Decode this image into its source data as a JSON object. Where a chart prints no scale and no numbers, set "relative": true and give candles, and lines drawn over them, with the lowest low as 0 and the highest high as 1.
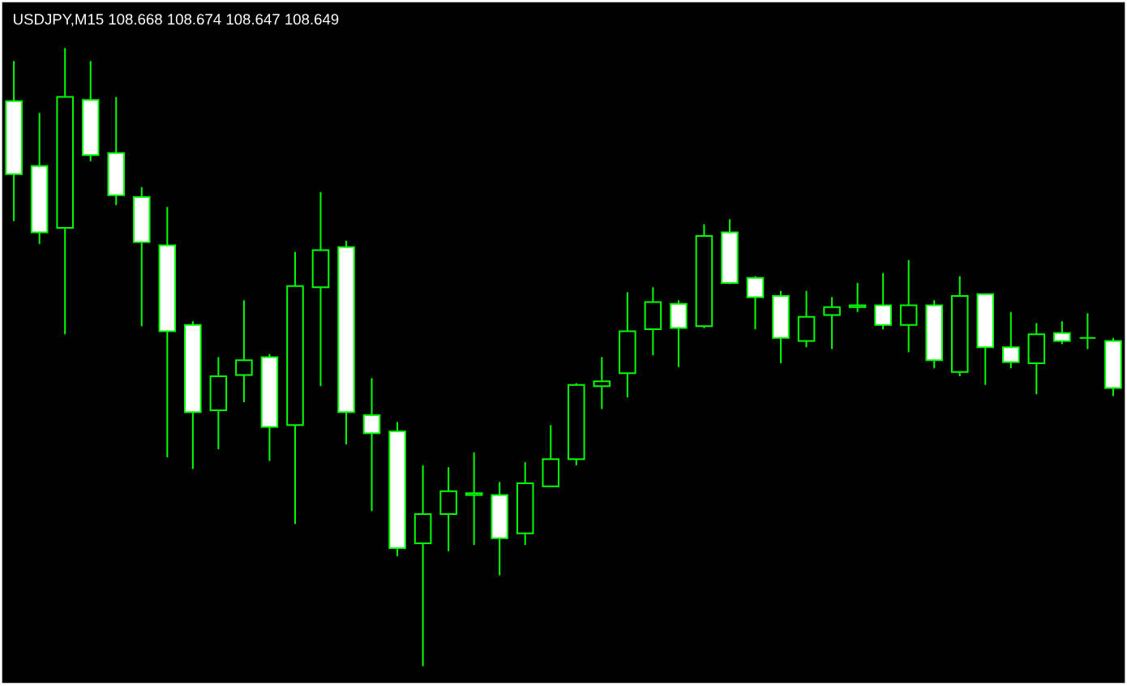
{
  "chart_data": {
    "type": "candlestick",
    "title": "USDJPY,M15  108.668 108.674 108.647 108.649",
    "relative": true,
    "color": "#00ff00",
    "categories": [
      null,
      null,
      null,
      null,
      null,
      null,
      null,
      null,
      null,
      null,
      null,
      null,
      null,
      null,
      null,
      null,
      null,
      null,
      null,
      null,
      null,
      null,
      null,
      null,
      null,
      null,
      null,
      null,
      null,
      null,
      null,
      null,
      null,
      null,
      null,
      null,
      null,
      null,
      null,
      null,
      null,
      null,
      null,
      null
    ],
    "ohlc": [
      [
        0.914,
        0.979,
        0.72,
        0.796
      ],
      [
        0.809,
        0.895,
        0.683,
        0.702
      ],
      [
        0.709,
        1.0,
        0.537,
        0.921
      ],
      [
        0.916,
        0.979,
        0.817,
        0.827
      ],
      [
        0.83,
        0.921,
        0.746,
        0.762
      ],
      [
        0.759,
        0.775,
        0.55,
        0.686
      ],
      [
        0.681,
        0.743,
        0.338,
        0.542
      ],
      [
        0.552,
        0.558,
        0.319,
        0.411
      ],
      [
        0.414,
        0.5,
        0.351,
        0.469
      ],
      [
        0.471,
        0.592,
        0.427,
        0.495
      ],
      [
        0.5,
        0.505,
        0.332,
        0.387
      ],
      [
        0.39,
        0.67,
        0.23,
        0.615
      ],
      [
        0.613,
        0.767,
        0.453,
        0.673
      ],
      [
        0.678,
        0.688,
        0.359,
        0.411
      ],
      [
        0.406,
        0.466,
        0.251,
        0.377
      ],
      [
        0.38,
        0.395,
        0.178,
        0.191
      ],
      [
        0.199,
        0.325,
        0.0,
        0.246
      ],
      [
        0.246,
        0.322,
        0.186,
        0.283
      ],
      [
        0.277,
        0.346,
        0.196,
        0.28
      ],
      [
        0.277,
        0.298,
        0.147,
        0.207
      ],
      [
        0.215,
        0.33,
        0.196,
        0.296
      ],
      [
        0.291,
        0.39,
        0.291,
        0.335
      ],
      [
        0.335,
        0.458,
        0.325,
        0.455
      ],
      [
        0.453,
        0.5,
        0.416,
        0.461
      ],
      [
        0.474,
        0.605,
        0.435,
        0.542
      ],
      [
        0.545,
        0.613,
        0.503,
        0.589
      ],
      [
        0.586,
        0.592,
        0.484,
        0.547
      ],
      [
        0.55,
        0.715,
        0.547,
        0.696
      ],
      [
        0.702,
        0.723,
        0.618,
        0.62
      ],
      [
        0.628,
        0.631,
        0.545,
        0.597
      ],
      [
        0.599,
        0.607,
        0.49,
        0.531
      ],
      [
        0.526,
        0.607,
        0.516,
        0.565
      ],
      [
        0.568,
        0.597,
        0.513,
        0.581
      ],
      [
        0.581,
        0.62,
        0.573,
        0.584
      ],
      [
        0.584,
        0.636,
        0.545,
        0.552
      ],
      [
        0.552,
        0.657,
        0.508,
        0.584
      ],
      [
        0.584,
        0.592,
        0.482,
        0.495
      ],
      [
        0.476,
        0.631,
        0.469,
        0.599
      ],
      [
        0.602,
        0.602,
        0.455,
        0.516
      ],
      [
        0.516,
        0.573,
        0.482,
        0.492
      ],
      [
        0.49,
        0.555,
        0.44,
        0.537
      ],
      [
        0.539,
        0.558,
        0.521,
        0.526
      ],
      [
        0.531,
        0.571,
        0.513,
        0.531
      ],
      [
        0.526,
        0.531,
        0.437,
        0.45
      ]
    ]
  }
}
